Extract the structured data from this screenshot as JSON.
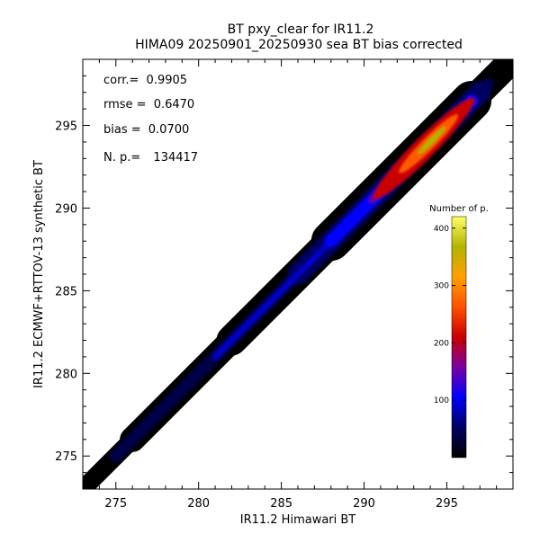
{
  "chart_data": {
    "type": "heatmap",
    "title": "BT pxy_clear for IR11.2",
    "subtitle": "HIMA09 20250901_20250930 sea BT bias corrected",
    "xlabel": "IR11.2 Himawari BT",
    "ylabel": "IR11.2 ECMWF+RTTOV-13 synthetic BT",
    "xlim": [
      273,
      299
    ],
    "ylim": [
      273,
      299
    ],
    "xticks": [
      "275",
      "280",
      "285",
      "290",
      "295"
    ],
    "yticks": [
      "275",
      "280",
      "285",
      "290",
      "295"
    ],
    "x_tick_values": [
      275,
      280,
      285,
      290,
      295
    ],
    "y_tick_values": [
      275,
      280,
      285,
      290,
      295
    ],
    "stats": [
      {
        "label": "corr.=",
        "value": "0.9905"
      },
      {
        "label": "rmse =",
        "value": "0.6470"
      },
      {
        "label": "bias =",
        "value": "0.0700"
      },
      {
        "label": "N. p.=",
        "value": "134417"
      }
    ],
    "density_peak_xy": [
      294,
      294
    ],
    "density_peak_count": 420,
    "colorbar": {
      "title": "Number of p.",
      "range": [
        0,
        420
      ],
      "ticks": [
        "100",
        "200",
        "300",
        "400"
      ],
      "tick_values": [
        100,
        200,
        300,
        400
      ],
      "colors": [
        "#000000",
        "#000060",
        "#0000ff",
        "#7800a0",
        "#c80000",
        "#ff5000",
        "#ffa000",
        "#b4b400",
        "#ffff64"
      ]
    }
  }
}
